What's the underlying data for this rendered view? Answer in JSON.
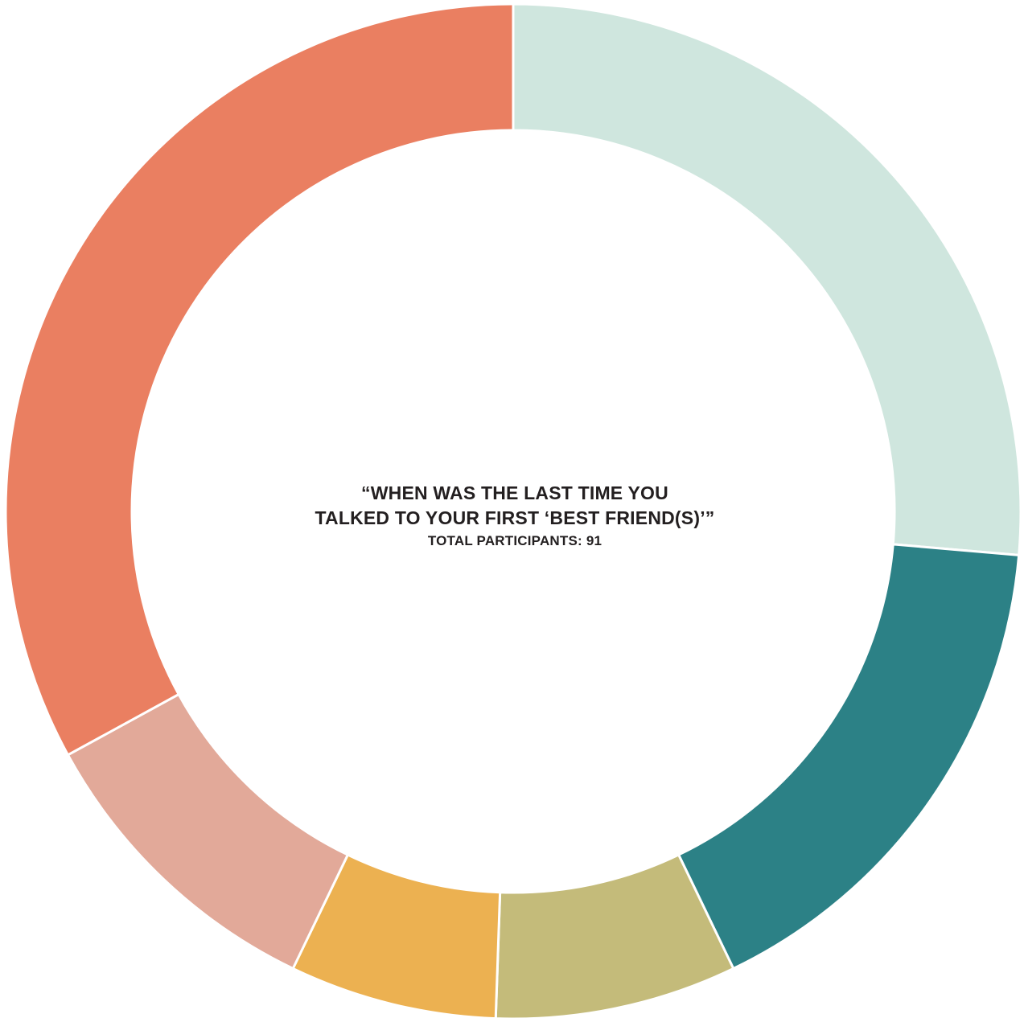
{
  "chart_data": {
    "type": "pie",
    "variant": "donut",
    "title_lines": [
      "“WHEN WAS THE LAST TIME YOU",
      "TALKED TO YOUR FIRST ‘BEST FRIEND(S)’”"
    ],
    "subtitle": "TOTAL PARTICIPANTS:  91",
    "total": 91,
    "slices": [
      {
        "value": 24,
        "color": "#cfe6de"
      },
      {
        "value": 15,
        "color": "#2c8186"
      },
      {
        "value": 7,
        "color": "#c4bb7a"
      },
      {
        "value": 6,
        "color": "#ecb151"
      },
      {
        "value": 9,
        "color": "#e2a999"
      },
      {
        "value": 30,
        "color": "#ea7f61"
      }
    ],
    "legend": "none",
    "grid": false
  }
}
